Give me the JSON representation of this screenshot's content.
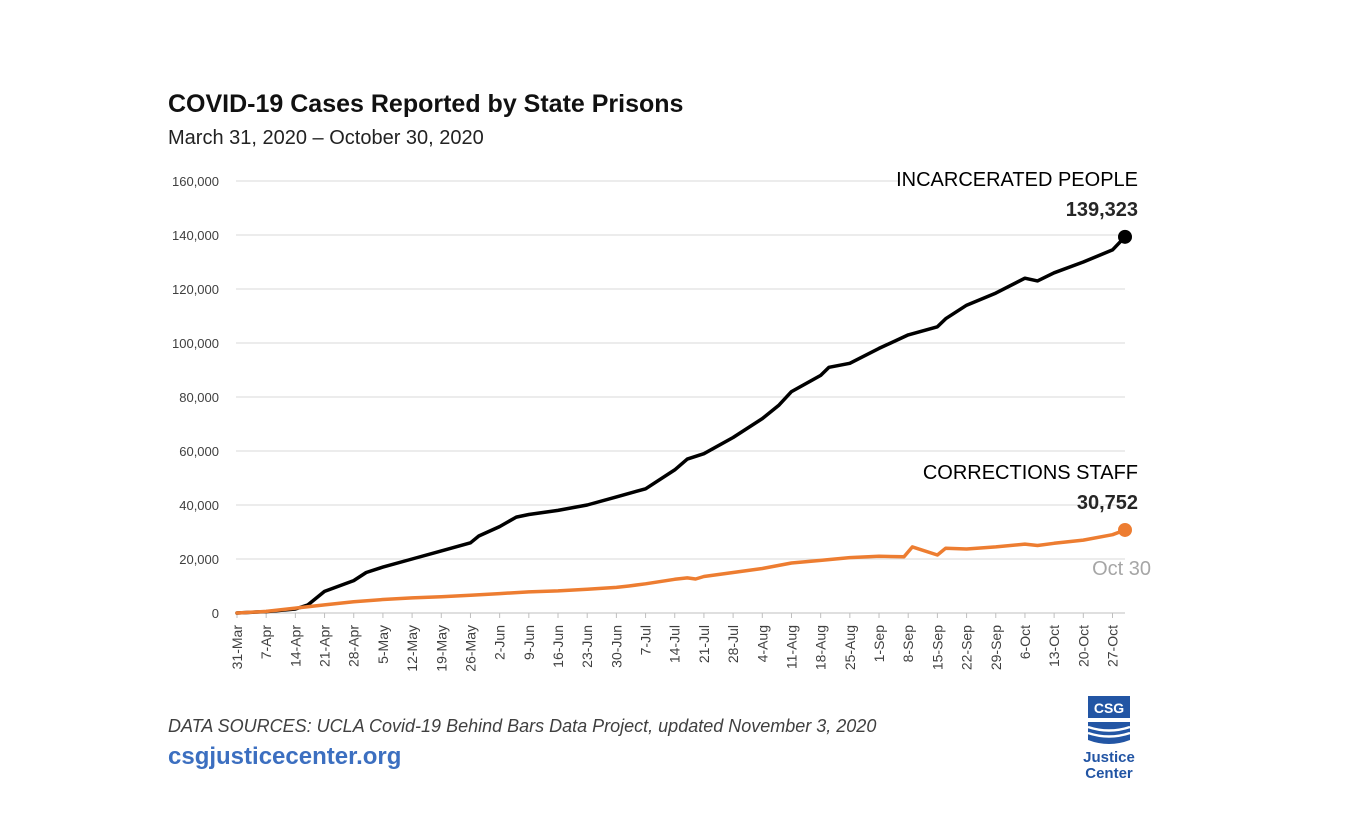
{
  "header": {
    "title": "COVID-19 Cases Reported by State Prisons",
    "subtitle": "March 31, 2020 – October 30, 2020"
  },
  "footer": {
    "source": "DATA SOURCES: UCLA Covid-19 Behind Bars Data Project, updated November 3, 2020",
    "site": "csgjusticecenter.org",
    "logo_top": "CSG",
    "logo_line1": "Justice",
    "logo_line2": "Center"
  },
  "colors": {
    "incarcerated": "#000000",
    "staff": "#ed7d31",
    "grid": "#d9d9d9",
    "end_label": "#a6a6a6",
    "brand_blue": "#2255a4"
  },
  "chart_data": {
    "type": "line",
    "title": "COVID-19 Cases Reported by State Prisons",
    "subtitle": "March 31, 2020 – October 30, 2020",
    "xlabel": "",
    "ylabel": "",
    "ylim": [
      0,
      160000
    ],
    "yticks": [
      0,
      20000,
      40000,
      60000,
      80000,
      100000,
      120000,
      140000,
      160000
    ],
    "ytick_labels": [
      "0",
      "20,000",
      "40,000",
      "60,000",
      "80,000",
      "100,000",
      "120,000",
      "140,000",
      "160,000"
    ],
    "x_range": [
      "2020-03-31",
      "2020-10-30"
    ],
    "xtick_labels": [
      "31-Mar",
      "7-Apr",
      "14-Apr",
      "21-Apr",
      "28-Apr",
      "5-May",
      "12-May",
      "19-May",
      "26-May",
      "2-Jun",
      "9-Jun",
      "16-Jun",
      "23-Jun",
      "30-Jun",
      "7-Jul",
      "14-Jul",
      "21-Jul",
      "28-Jul",
      "4-Aug",
      "11-Aug",
      "18-Aug",
      "25-Aug",
      "1-Sep",
      "8-Sep",
      "15-Sep",
      "22-Sep",
      "29-Sep",
      "6-Oct",
      "13-Oct",
      "20-Oct",
      "27-Oct"
    ],
    "grid": true,
    "end_annotation": "Oct 30",
    "series": [
      {
        "name": "INCARCERATED PEOPLE",
        "end_value_label": "139,323",
        "points": [
          [
            "2020-03-31",
            0
          ],
          [
            "2020-04-07",
            500
          ],
          [
            "2020-04-14",
            1500
          ],
          [
            "2020-04-17",
            3000
          ],
          [
            "2020-04-21",
            8000
          ],
          [
            "2020-04-28",
            12000
          ],
          [
            "2020-05-01",
            15000
          ],
          [
            "2020-05-05",
            17000
          ],
          [
            "2020-05-12",
            20000
          ],
          [
            "2020-05-19",
            23000
          ],
          [
            "2020-05-26",
            26000
          ],
          [
            "2020-05-28",
            28500
          ],
          [
            "2020-06-02",
            32000
          ],
          [
            "2020-06-06",
            35500
          ],
          [
            "2020-06-09",
            36500
          ],
          [
            "2020-06-16",
            38000
          ],
          [
            "2020-06-23",
            40000
          ],
          [
            "2020-06-30",
            43000
          ],
          [
            "2020-07-07",
            46000
          ],
          [
            "2020-07-14",
            53000
          ],
          [
            "2020-07-17",
            57000
          ],
          [
            "2020-07-21",
            59000
          ],
          [
            "2020-07-28",
            65000
          ],
          [
            "2020-08-04",
            72000
          ],
          [
            "2020-08-08",
            77000
          ],
          [
            "2020-08-11",
            82000
          ],
          [
            "2020-08-18",
            88000
          ],
          [
            "2020-08-20",
            91000
          ],
          [
            "2020-08-25",
            92500
          ],
          [
            "2020-09-01",
            98000
          ],
          [
            "2020-09-08",
            103000
          ],
          [
            "2020-09-15",
            106000
          ],
          [
            "2020-09-17",
            109000
          ],
          [
            "2020-09-22",
            114000
          ],
          [
            "2020-09-29",
            118500
          ],
          [
            "2020-10-06",
            124000
          ],
          [
            "2020-10-09",
            123000
          ],
          [
            "2020-10-13",
            126000
          ],
          [
            "2020-10-20",
            130000
          ],
          [
            "2020-10-27",
            134500
          ],
          [
            "2020-10-30",
            139323
          ]
        ]
      },
      {
        "name": "CORRECTIONS STAFF",
        "end_value_label": "30,752",
        "points": [
          [
            "2020-03-31",
            0
          ],
          [
            "2020-04-07",
            600
          ],
          [
            "2020-04-14",
            1800
          ],
          [
            "2020-04-21",
            3000
          ],
          [
            "2020-04-28",
            4200
          ],
          [
            "2020-05-05",
            5000
          ],
          [
            "2020-05-12",
            5600
          ],
          [
            "2020-05-19",
            6000
          ],
          [
            "2020-05-26",
            6600
          ],
          [
            "2020-06-02",
            7200
          ],
          [
            "2020-06-09",
            7800
          ],
          [
            "2020-06-16",
            8200
          ],
          [
            "2020-06-23",
            8800
          ],
          [
            "2020-06-30",
            9500
          ],
          [
            "2020-07-03",
            10000
          ],
          [
            "2020-07-07",
            10800
          ],
          [
            "2020-07-14",
            12500
          ],
          [
            "2020-07-17",
            13000
          ],
          [
            "2020-07-19",
            12600
          ],
          [
            "2020-07-21",
            13500
          ],
          [
            "2020-07-28",
            15000
          ],
          [
            "2020-08-04",
            16500
          ],
          [
            "2020-08-11",
            18500
          ],
          [
            "2020-08-18",
            19500
          ],
          [
            "2020-08-25",
            20500
          ],
          [
            "2020-09-01",
            21000
          ],
          [
            "2020-09-07",
            20800
          ],
          [
            "2020-09-09",
            24500
          ],
          [
            "2020-09-15",
            21500
          ],
          [
            "2020-09-17",
            24000
          ],
          [
            "2020-09-22",
            23700
          ],
          [
            "2020-09-29",
            24500
          ],
          [
            "2020-10-06",
            25500
          ],
          [
            "2020-10-09",
            25000
          ],
          [
            "2020-10-13",
            25800
          ],
          [
            "2020-10-20",
            27000
          ],
          [
            "2020-10-27",
            29000
          ],
          [
            "2020-10-30",
            30752
          ]
        ]
      }
    ]
  }
}
